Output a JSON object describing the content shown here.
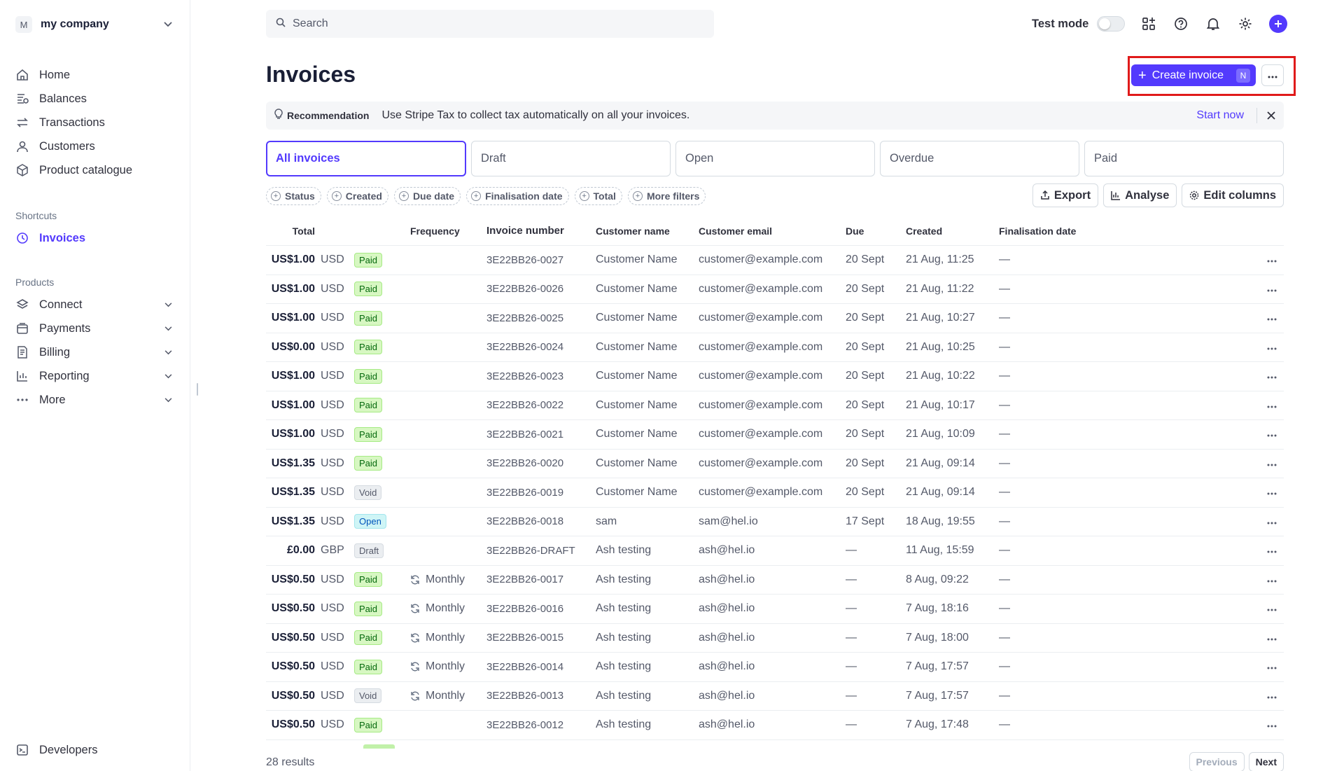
{
  "account": {
    "initial": "M",
    "name": "my company"
  },
  "sidebar": {
    "main": [
      {
        "label": "Home",
        "icon": "home-icon"
      },
      {
        "label": "Balances",
        "icon": "balances-icon"
      },
      {
        "label": "Transactions",
        "icon": "transactions-icon"
      },
      {
        "label": "Customers",
        "icon": "customers-icon"
      },
      {
        "label": "Product catalogue",
        "icon": "product-icon"
      }
    ],
    "shortcuts_label": "Shortcuts",
    "shortcuts": [
      {
        "label": "Invoices",
        "icon": "clock-icon"
      }
    ],
    "products_label": "Products",
    "products": [
      {
        "label": "Connect",
        "icon": "connect-icon"
      },
      {
        "label": "Payments",
        "icon": "payments-icon"
      },
      {
        "label": "Billing",
        "icon": "billing-icon"
      },
      {
        "label": "Reporting",
        "icon": "reporting-icon"
      },
      {
        "label": "More",
        "icon": "more-icon"
      }
    ],
    "developers": "Developers"
  },
  "topbar": {
    "search_placeholder": "Search",
    "test_mode_label": "Test mode",
    "test_mode_on": false
  },
  "page": {
    "title": "Invoices",
    "create_label": "Create invoice",
    "create_shortcut": "N"
  },
  "recommendation": {
    "tag": "Recommendation",
    "message": "Use Stripe Tax to collect tax automatically on all your invoices.",
    "action": "Start now"
  },
  "tabs": [
    "All invoices",
    "Draft",
    "Open",
    "Overdue",
    "Paid"
  ],
  "active_tab": "All invoices",
  "filters": [
    "Status",
    "Created",
    "Due date",
    "Finalisation date",
    "Total",
    "More filters"
  ],
  "actions": {
    "export": "Export",
    "analyse": "Analyse",
    "edit_columns": "Edit columns"
  },
  "table": {
    "headers": {
      "total": "Total",
      "frequency": "Frequency",
      "invoice_number": "Invoice number",
      "customer_name": "Customer name",
      "customer_email": "Customer email",
      "due": "Due",
      "created": "Created",
      "finalisation_date": "Finalisation date"
    },
    "rows": [
      {
        "amount": "US$1.00",
        "currency": "USD",
        "status": "Paid",
        "frequency": "",
        "invoice": "3E22BB26-0027",
        "name": "Customer Name",
        "email": "customer@example.com",
        "due": "20 Sept",
        "created": "21 Aug, 11:25",
        "final": "—"
      },
      {
        "amount": "US$1.00",
        "currency": "USD",
        "status": "Paid",
        "frequency": "",
        "invoice": "3E22BB26-0026",
        "name": "Customer Name",
        "email": "customer@example.com",
        "due": "20 Sept",
        "created": "21 Aug, 11:22",
        "final": "—"
      },
      {
        "amount": "US$1.00",
        "currency": "USD",
        "status": "Paid",
        "frequency": "",
        "invoice": "3E22BB26-0025",
        "name": "Customer Name",
        "email": "customer@example.com",
        "due": "20 Sept",
        "created": "21 Aug, 10:27",
        "final": "—"
      },
      {
        "amount": "US$0.00",
        "currency": "USD",
        "status": "Paid",
        "frequency": "",
        "invoice": "3E22BB26-0024",
        "name": "Customer Name",
        "email": "customer@example.com",
        "due": "20 Sept",
        "created": "21 Aug, 10:25",
        "final": "—"
      },
      {
        "amount": "US$1.00",
        "currency": "USD",
        "status": "Paid",
        "frequency": "",
        "invoice": "3E22BB26-0023",
        "name": "Customer Name",
        "email": "customer@example.com",
        "due": "20 Sept",
        "created": "21 Aug, 10:22",
        "final": "—"
      },
      {
        "amount": "US$1.00",
        "currency": "USD",
        "status": "Paid",
        "frequency": "",
        "invoice": "3E22BB26-0022",
        "name": "Customer Name",
        "email": "customer@example.com",
        "due": "20 Sept",
        "created": "21 Aug, 10:17",
        "final": "—"
      },
      {
        "amount": "US$1.00",
        "currency": "USD",
        "status": "Paid",
        "frequency": "",
        "invoice": "3E22BB26-0021",
        "name": "Customer Name",
        "email": "customer@example.com",
        "due": "20 Sept",
        "created": "21 Aug, 10:09",
        "final": "—"
      },
      {
        "amount": "US$1.35",
        "currency": "USD",
        "status": "Paid",
        "frequency": "",
        "invoice": "3E22BB26-0020",
        "name": "Customer Name",
        "email": "customer@example.com",
        "due": "20 Sept",
        "created": "21 Aug, 09:14",
        "final": "—"
      },
      {
        "amount": "US$1.35",
        "currency": "USD",
        "status": "Void",
        "frequency": "",
        "invoice": "3E22BB26-0019",
        "name": "Customer Name",
        "email": "customer@example.com",
        "due": "20 Sept",
        "created": "21 Aug, 09:14",
        "final": "—"
      },
      {
        "amount": "US$1.35",
        "currency": "USD",
        "status": "Open",
        "frequency": "",
        "invoice": "3E22BB26-0018",
        "name": "sam",
        "email": "sam@hel.io",
        "due": "17 Sept",
        "created": "18 Aug, 19:55",
        "final": "—"
      },
      {
        "amount": "£0.00",
        "currency": "GBP",
        "status": "Draft",
        "frequency": "",
        "invoice": "3E22BB26-DRAFT",
        "name": "Ash testing",
        "email": "ash@hel.io",
        "due": "—",
        "created": "11 Aug, 15:59",
        "final": "—"
      },
      {
        "amount": "US$0.50",
        "currency": "USD",
        "status": "Paid",
        "frequency": "Monthly",
        "invoice": "3E22BB26-0017",
        "name": "Ash testing",
        "email": "ash@hel.io",
        "due": "—",
        "created": "8 Aug, 09:22",
        "final": "—"
      },
      {
        "amount": "US$0.50",
        "currency": "USD",
        "status": "Paid",
        "frequency": "Monthly",
        "invoice": "3E22BB26-0016",
        "name": "Ash testing",
        "email": "ash@hel.io",
        "due": "—",
        "created": "7 Aug, 18:16",
        "final": "—"
      },
      {
        "amount": "US$0.50",
        "currency": "USD",
        "status": "Paid",
        "frequency": "Monthly",
        "invoice": "3E22BB26-0015",
        "name": "Ash testing",
        "email": "ash@hel.io",
        "due": "—",
        "created": "7 Aug, 18:00",
        "final": "—"
      },
      {
        "amount": "US$0.50",
        "currency": "USD",
        "status": "Paid",
        "frequency": "Monthly",
        "invoice": "3E22BB26-0014",
        "name": "Ash testing",
        "email": "ash@hel.io",
        "due": "—",
        "created": "7 Aug, 17:57",
        "final": "—"
      },
      {
        "amount": "US$0.50",
        "currency": "USD",
        "status": "Void",
        "frequency": "Monthly",
        "invoice": "3E22BB26-0013",
        "name": "Ash testing",
        "email": "ash@hel.io",
        "due": "—",
        "created": "7 Aug, 17:57",
        "final": "—"
      },
      {
        "amount": "US$0.50",
        "currency": "USD",
        "status": "Paid",
        "frequency": "",
        "invoice": "3E22BB26-0012",
        "name": "Ash testing",
        "email": "ash@hel.io",
        "due": "—",
        "created": "7 Aug, 17:48",
        "final": "—"
      }
    ]
  },
  "footer": {
    "results": "28 results",
    "previous": "Previous",
    "next": "Next"
  },
  "colors": {
    "accent": "#533afd",
    "highlight": "#e01a1a"
  }
}
